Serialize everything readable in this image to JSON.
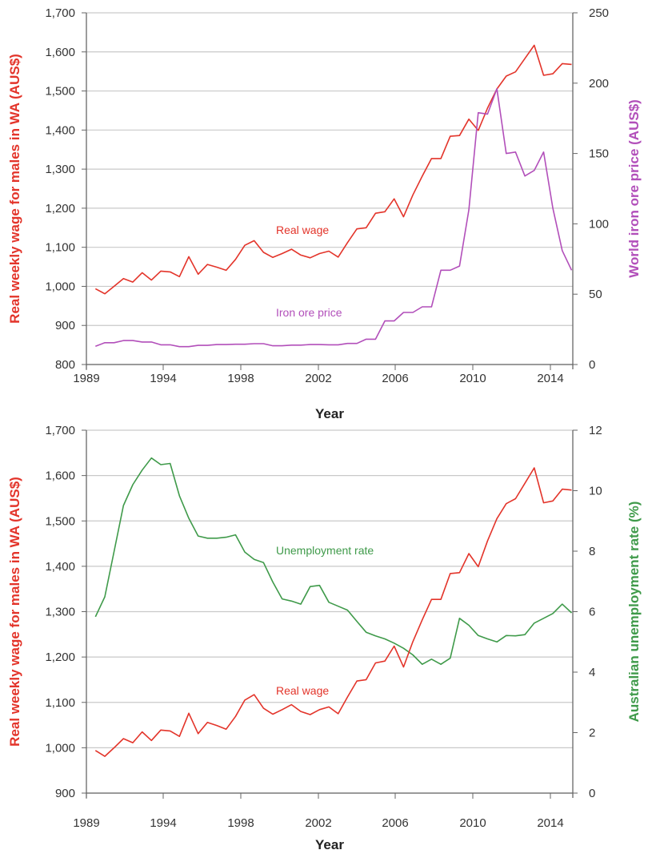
{
  "chart_data": [
    {
      "type": "line",
      "xlabel": "Year",
      "xtick_labels": [
        "1989",
        "1994",
        "1998",
        "2002",
        "2006",
        "2010",
        "2014"
      ],
      "ylabel_left": "Real weekly wage for males in WA (AUS$)",
      "ylabel_right": "World iron ore price (AUS$)",
      "ylim_left": [
        800,
        1700
      ],
      "yticks_left": [
        "800",
        "900",
        "1,000",
        "1,100",
        "1,200",
        "1,300",
        "1,400",
        "1,500",
        "1,600",
        "1,700"
      ],
      "ylim_right": [
        0,
        250
      ],
      "yticks_right": [
        "0",
        "50",
        "100",
        "150",
        "200",
        "250"
      ],
      "grid": true,
      "x_sampling": "half-yearly",
      "series": [
        {
          "name": "Real wage",
          "axis": "left",
          "color": "#e3342a",
          "values": [
            994,
            981,
            1000,
            1020,
            1011,
            1035,
            1016,
            1039,
            1037,
            1025,
            1076,
            1031,
            1056,
            1049,
            1041,
            1069,
            1105,
            1117,
            1087,
            1074,
            1084,
            1095,
            1080,
            1073,
            1084,
            1090,
            1075,
            1112,
            1147,
            1150,
            1187,
            1191,
            1224,
            1178,
            1234,
            1282,
            1327,
            1327,
            1384,
            1386,
            1428,
            1399,
            1456,
            1505,
            1538,
            1549,
            1583,
            1617,
            1540,
            1544,
            1570,
            1568
          ]
        },
        {
          "name": "Iron ore price",
          "axis": "right",
          "color": "#b24fba",
          "values": [
            13,
            15.5,
            15.5,
            17,
            17,
            16,
            16,
            14,
            14,
            12.7,
            12.7,
            13.6,
            13.6,
            14.2,
            14.2,
            14.4,
            14.4,
            14.8,
            14.8,
            13.3,
            13.3,
            13.8,
            13.8,
            14.2,
            14.2,
            14,
            14,
            15,
            15,
            18,
            18,
            31,
            31,
            37,
            37,
            41,
            41,
            67,
            67,
            70,
            110,
            179,
            178,
            196,
            150,
            151,
            134,
            138,
            151,
            111,
            81,
            67
          ]
        }
      ]
    },
    {
      "type": "line",
      "xlabel": "Year",
      "xtick_labels": [
        "1989",
        "1994",
        "1998",
        "2002",
        "2006",
        "2010",
        "2014"
      ],
      "ylabel_left": "Real weekly wage for males in WA (AUS$)",
      "ylabel_right": "Australian unemployment rate (%)",
      "ylim_left": [
        900,
        1700
      ],
      "yticks_left": [
        "900",
        "1,000",
        "1,100",
        "1,200",
        "1,300",
        "1,400",
        "1,500",
        "1,600",
        "1,700"
      ],
      "ylim_right": [
        0,
        12
      ],
      "yticks_right": [
        "0",
        "2",
        "4",
        "6",
        "8",
        "10",
        "12"
      ],
      "grid": true,
      "x_sampling": "half-yearly",
      "series": [
        {
          "name": "Unemployment rate",
          "axis": "right",
          "color": "#3f9a4a",
          "values": [
            5.83,
            6.49,
            7.99,
            9.51,
            10.2,
            10.68,
            11.08,
            10.86,
            10.9,
            9.83,
            9.09,
            8.5,
            8.43,
            8.43,
            8.46,
            8.54,
            7.97,
            7.73,
            7.62,
            6.98,
            6.42,
            6.35,
            6.25,
            6.83,
            6.87,
            6.31,
            6.18,
            6.05,
            5.68,
            5.32,
            5.2,
            5.1,
            4.96,
            4.79,
            4.57,
            4.26,
            4.43,
            4.26,
            4.46,
            5.78,
            5.55,
            5.21,
            5.1,
            5.0,
            5.21,
            5.2,
            5.24,
            5.62,
            5.78,
            5.94,
            6.25,
            5.96
          ]
        },
        {
          "name": "Real wage",
          "axis": "left",
          "color": "#e3342a",
          "values": [
            994,
            981,
            1000,
            1020,
            1011,
            1035,
            1016,
            1039,
            1037,
            1025,
            1076,
            1031,
            1056,
            1049,
            1041,
            1069,
            1105,
            1117,
            1087,
            1074,
            1084,
            1095,
            1080,
            1073,
            1084,
            1090,
            1075,
            1112,
            1147,
            1150,
            1187,
            1191,
            1224,
            1178,
            1234,
            1282,
            1327,
            1327,
            1384,
            1386,
            1428,
            1399,
            1456,
            1505,
            1538,
            1549,
            1583,
            1617,
            1540,
            1544,
            1570,
            1568
          ]
        }
      ]
    }
  ]
}
